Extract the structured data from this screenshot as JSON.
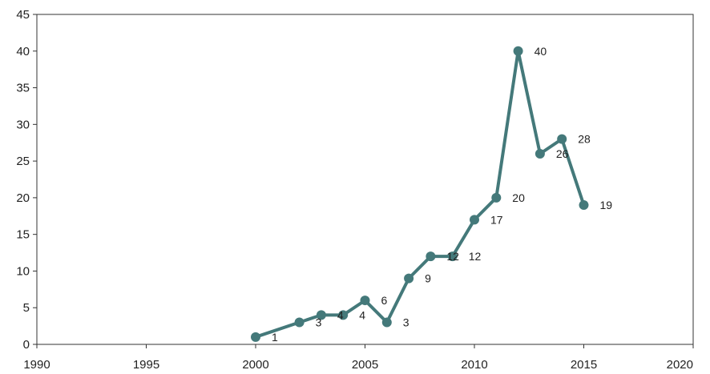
{
  "chart_data": {
    "type": "line",
    "title": "",
    "xlabel": "",
    "ylabel": "",
    "xlim": [
      1990,
      2020
    ],
    "ylim": [
      0,
      45
    ],
    "grid": false,
    "legend": "none",
    "x_ticks": [
      1990,
      1995,
      2000,
      2005,
      2010,
      2015,
      2020
    ],
    "y_ticks": [
      0,
      5,
      10,
      15,
      20,
      25,
      30,
      35,
      40,
      45
    ],
    "series": [
      {
        "color": "#44797a",
        "points": [
          {
            "x": 2000,
            "y": 1,
            "label": "1"
          },
          {
            "x": 2002,
            "y": 3,
            "label": "3"
          },
          {
            "x": 2003,
            "y": 4,
            "label": "4"
          },
          {
            "x": 2004,
            "y": 4,
            "label": "4"
          },
          {
            "x": 2005,
            "y": 6,
            "label": "6"
          },
          {
            "x": 2006,
            "y": 3,
            "label": "3"
          },
          {
            "x": 2007,
            "y": 9,
            "label": "9"
          },
          {
            "x": 2008,
            "y": 12,
            "label": "12"
          },
          {
            "x": 2009,
            "y": 12,
            "label": "12"
          },
          {
            "x": 2010,
            "y": 17,
            "label": "17"
          },
          {
            "x": 2011,
            "y": 20,
            "label": "20"
          },
          {
            "x": 2012,
            "y": 40,
            "label": "40"
          },
          {
            "x": 2013,
            "y": 26,
            "label": "26"
          },
          {
            "x": 2014,
            "y": 28,
            "label": "28"
          },
          {
            "x": 2015,
            "y": 19,
            "label": "19"
          }
        ]
      }
    ]
  }
}
